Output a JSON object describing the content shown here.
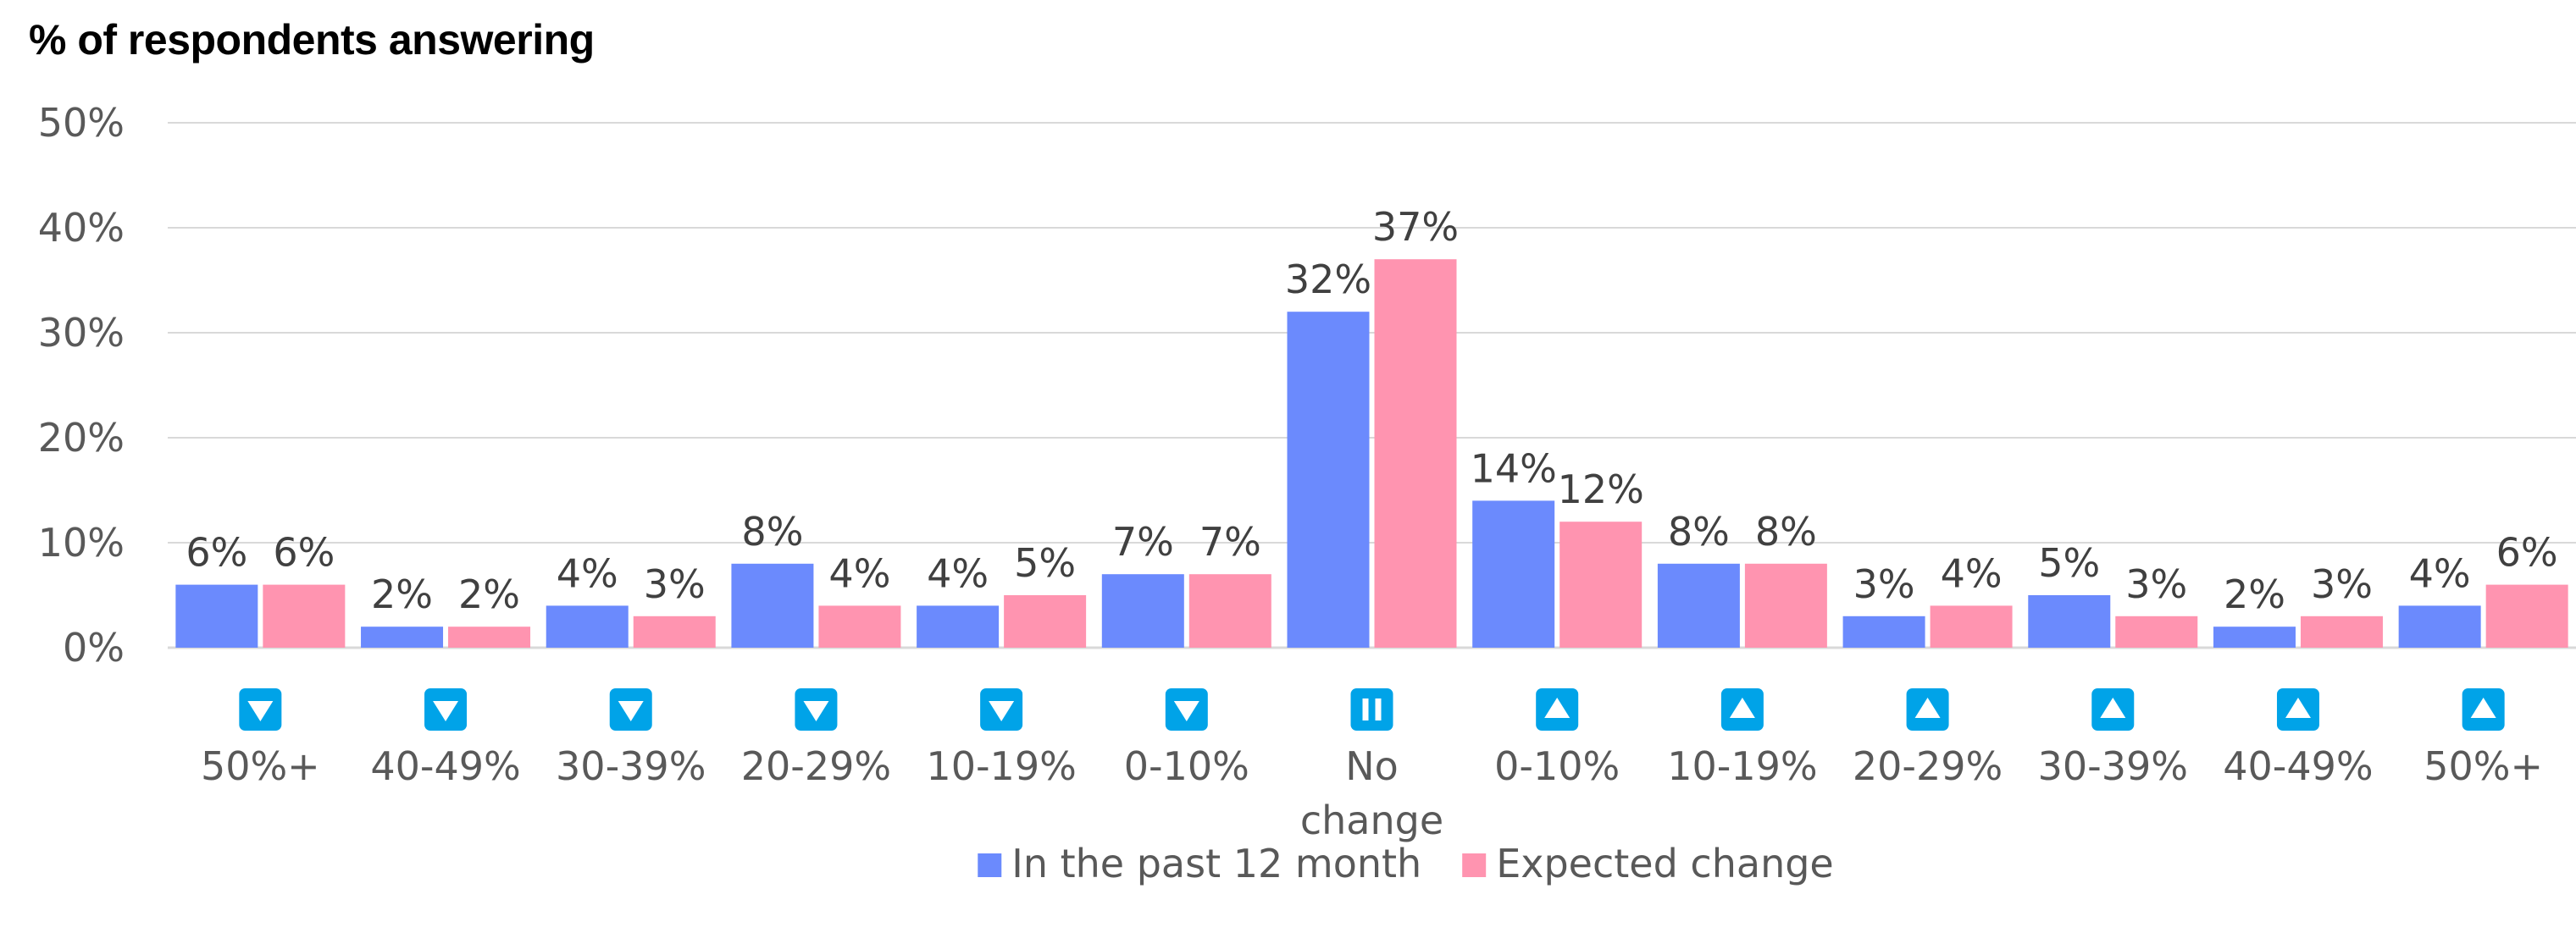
{
  "title": "% of respondents answering",
  "chart_data": {
    "type": "bar",
    "title": "% of respondents answering",
    "xlabel": "",
    "ylabel": "",
    "ylim": [
      0,
      50
    ],
    "yticks": [
      "0%",
      "10%",
      "20%",
      "30%",
      "40%",
      "50%"
    ],
    "grid": true,
    "legend_position": "bottom",
    "categories": [
      "50%+",
      "40-49%",
      "30-39%",
      "20-29%",
      "10-19%",
      "0-10%",
      "No change",
      "0-10%",
      "10-19%",
      "20-29%",
      "30-39%",
      "40-49%",
      "50%+"
    ],
    "category_icons": [
      "down-arrow-icon",
      "down-arrow-icon",
      "down-arrow-icon",
      "down-arrow-icon",
      "down-arrow-icon",
      "down-arrow-icon",
      "pause-icon",
      "up-arrow-icon",
      "up-arrow-icon",
      "up-arrow-icon",
      "up-arrow-icon",
      "up-arrow-icon",
      "up-arrow-icon"
    ],
    "series": [
      {
        "name": "In the past 12 month",
        "color": "#6b8afd",
        "values": [
          6,
          2,
          4,
          8,
          4,
          7,
          32,
          14,
          8,
          3,
          5,
          2,
          4
        ],
        "labels": [
          "6%",
          "2%",
          "4%",
          "8%",
          "4%",
          "7%",
          "32%",
          "14%",
          "8%",
          "3%",
          "5%",
          "2%",
          "4%"
        ]
      },
      {
        "name": "Expected change",
        "color": "#ff94b0",
        "values": [
          6,
          2,
          3,
          4,
          5,
          7,
          37,
          12,
          8,
          4,
          3,
          3,
          6
        ],
        "labels": [
          "6%",
          "2%",
          "3%",
          "4%",
          "5%",
          "7%",
          "37%",
          "12%",
          "8%",
          "4%",
          "3%",
          "3%",
          "6%"
        ]
      }
    ]
  },
  "colors": {
    "icon_badge": "#00a3e8",
    "grid": "#d9d9d9",
    "axis_text": "#595959",
    "label_text": "#404040"
  }
}
